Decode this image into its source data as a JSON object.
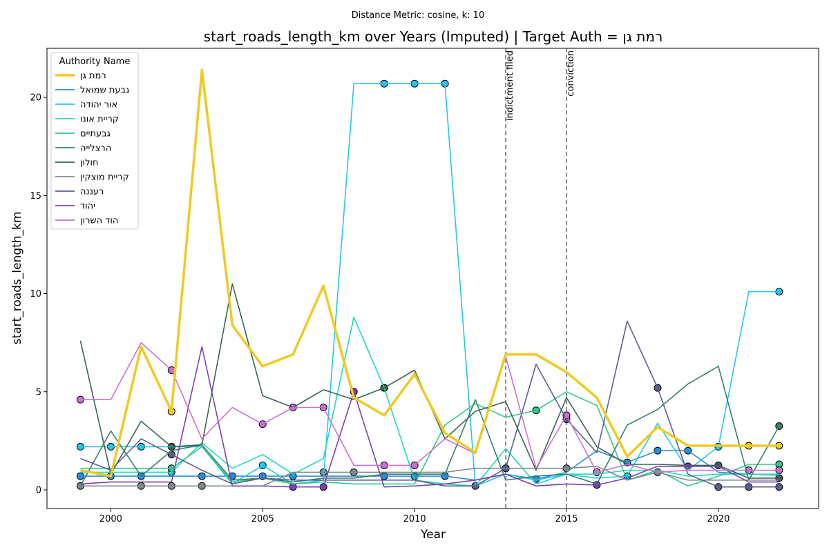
{
  "chart_data": {
    "type": "line",
    "suptitle": "Distance Metric: cosine, k: 10",
    "title": "start_roads_length_km over Years (Imputed) | Target Auth = רמת גן",
    "xlabel": "Year",
    "ylabel": "start_roads_length_km",
    "xlim": [
      1997.9,
      2023.3
    ],
    "ylim": [
      -0.95,
      22.5
    ],
    "xticks": [
      2000,
      2005,
      2010,
      2015,
      2020
    ],
    "yticks": [
      0,
      5,
      10,
      15,
      20
    ],
    "grid": false,
    "legend": {
      "title": "Authority Name",
      "placement": "top-left"
    },
    "years": [
      1999,
      2000,
      2001,
      2002,
      2003,
      2004,
      2005,
      2006,
      2007,
      2008,
      2009,
      2010,
      2011,
      2012,
      2013,
      2014,
      2015,
      2016,
      2017,
      2018,
      2019,
      2020,
      2021,
      2022
    ],
    "vlines": [
      {
        "x": 2013,
        "label": "indictment filed"
      },
      {
        "x": 2015,
        "label": "conviction"
      }
    ],
    "series": [
      {
        "name": "רמת גן",
        "color": "#f1c920",
        "target": true,
        "values": [
          1.0,
          0.7,
          7.3,
          4.0,
          21.4,
          8.4,
          6.3,
          6.9,
          10.4,
          4.7,
          3.8,
          5.9,
          2.9,
          1.9,
          6.9,
          6.9,
          6.0,
          4.7,
          1.7,
          3.2,
          2.25,
          2.25,
          2.25,
          2.25
        ],
        "observed": [
          2002,
          2021,
          2022
        ]
      },
      {
        "name": "גבעת שמואל",
        "color": "#2a8cdc",
        "values": [
          0.7,
          0.7,
          0.7,
          0.7,
          0.7,
          0.7,
          0.7,
          0.7,
          0.7,
          0.7,
          0.7,
          0.7,
          0.7,
          0.5,
          0.8,
          0.55,
          0.9,
          2.0,
          1.4,
          2.0,
          2.0,
          0.9,
          0.8,
          0.75
        ],
        "observed": [
          1999,
          2000,
          2001,
          2003,
          2004,
          2005,
          2006,
          2009,
          2010,
          2011,
          2014,
          2017,
          2018,
          2019
        ]
      },
      {
        "name": "אור יהודה",
        "color": "#22c7ee",
        "values": [
          2.2,
          2.2,
          2.2,
          2.2,
          2.2,
          0.3,
          1.25,
          0.3,
          0.5,
          20.7,
          20.7,
          20.7,
          20.7,
          0.2,
          0.8,
          0.5,
          0.8,
          0.6,
          0.7,
          3.4,
          1.0,
          2.2,
          10.1,
          10.1
        ],
        "observed": [
          1999,
          2000,
          2001,
          2002,
          2005,
          2009,
          2010,
          2011,
          2017,
          2020,
          2022
        ]
      },
      {
        "name": "קריית אונו",
        "color": "#1fd9c0",
        "values": [
          0.9,
          0.9,
          0.9,
          0.9,
          2.4,
          1.1,
          1.8,
          0.8,
          1.6,
          8.8,
          5.2,
          0.5,
          0.3,
          0.2,
          2.1,
          0.3,
          0.8,
          0.8,
          1.0,
          1.0,
          0.7,
          0.8,
          0.8,
          0.8
        ],
        "observed": [
          2002,
          2009
        ]
      },
      {
        "name": "גבעתיים",
        "color": "#2ec98a",
        "values": [
          1.1,
          1.1,
          1.1,
          1.1,
          2.2,
          0.4,
          0.6,
          0.3,
          0.4,
          0.3,
          0.3,
          0.3,
          3.3,
          4.4,
          3.7,
          4.05,
          5.0,
          4.3,
          0.5,
          1.0,
          0.2,
          0.7,
          1.3,
          1.3
        ],
        "observed": [
          2002,
          2014,
          2022
        ]
      },
      {
        "name": "הרצלייה",
        "color": "#36806a",
        "values": [
          0.2,
          3.0,
          0.7,
          2.0,
          2.3,
          0.5,
          0.6,
          0.4,
          0.6,
          0.6,
          0.8,
          0.8,
          0.8,
          4.6,
          0.5,
          0.7,
          0.8,
          0.3,
          3.3,
          4.1,
          5.4,
          6.3,
          0.5,
          3.25
        ],
        "observed": [
          2022
        ]
      },
      {
        "name": "חולון",
        "color": "#3c6452",
        "values": [
          7.6,
          0.8,
          3.5,
          2.2,
          2.3,
          10.5,
          4.8,
          4.2,
          5.1,
          4.6,
          5.2,
          6.1,
          2.6,
          4.0,
          4.5,
          1.0,
          4.7,
          2.2,
          1.3,
          1.3,
          1.25,
          1.25,
          0.6,
          0.6
        ],
        "observed": [
          2002,
          2009,
          2020,
          2022
        ]
      },
      {
        "name": "קריית מוצקין",
        "color": "#7d8c8a",
        "values": [
          0.2,
          0.2,
          0.2,
          0.2,
          0.2,
          0.2,
          0.2,
          0.9,
          0.9,
          0.9,
          0.9,
          0.9,
          0.9,
          1.1,
          1.1,
          1.1,
          1.1,
          1.2,
          0.5,
          0.9,
          0.5,
          0.5,
          0.5,
          0.5
        ],
        "observed": [
          1999,
          2001,
          2002,
          2003,
          2007,
          2008,
          2013,
          2015,
          2018
        ]
      },
      {
        "name": "רעננה",
        "color": "#5a5f8f",
        "values": [
          1.6,
          1.0,
          2.6,
          1.8,
          1.0,
          0.3,
          0.6,
          0.5,
          0.5,
          0.5,
          0.5,
          0.5,
          0.2,
          0.2,
          1.1,
          6.4,
          3.6,
          1.9,
          8.6,
          5.2,
          0.8,
          0.15,
          0.15,
          0.15
        ],
        "observed": [
          2002,
          2012,
          2013,
          2015,
          2018,
          2020,
          2021,
          2022
        ]
      },
      {
        "name": "יהוד",
        "color": "#7a3fb2",
        "values": [
          0.3,
          0.4,
          0.4,
          0.4,
          7.3,
          0.2,
          0.2,
          0.15,
          0.15,
          5.0,
          0.15,
          0.2,
          0.3,
          0.5,
          0.8,
          0.2,
          0.3,
          0.25,
          0.6,
          1.2,
          1.2,
          1.2,
          0.4,
          0.4
        ],
        "observed": [
          2006,
          2007,
          2008,
          2016,
          2019
        ]
      },
      {
        "name": "הוד השרון",
        "color": "#cc6fd4",
        "values": [
          4.6,
          4.6,
          7.5,
          6.1,
          2.6,
          4.2,
          3.35,
          4.2,
          4.2,
          1.25,
          1.25,
          1.25,
          2.6,
          1.85,
          6.8,
          1.1,
          3.8,
          0.9,
          1.3,
          0.9,
          1.0,
          1.0,
          1.0,
          1.0
        ],
        "observed": [
          1999,
          2002,
          2005,
          2006,
          2007,
          2009,
          2010,
          2015,
          2016,
          2021,
          2022
        ]
      }
    ]
  }
}
